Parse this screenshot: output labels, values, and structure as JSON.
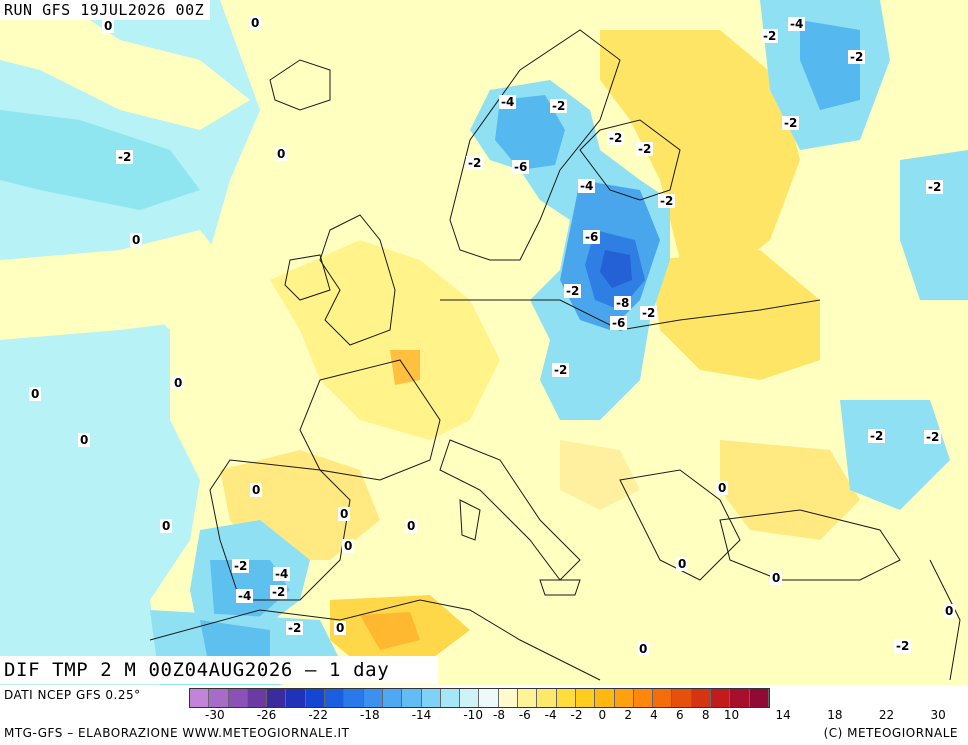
{
  "header": {
    "run_label": "RUN GFS 19JUL2026 00Z"
  },
  "map_title": "DIF TMP 2 M 00Z04AUG2026 – 1 day",
  "footer": {
    "source": "DATI NCEP GFS 0.25°",
    "credit": "MTG-GFS – ELABORAZIONE WWW.METEOGIORNALE.IT",
    "copyright": "(C) METEOGIORNALE"
  },
  "legend": {
    "colors": [
      "#c184d8",
      "#a86bc9",
      "#8b51b6",
      "#6c3aa3",
      "#3b2c9e",
      "#1f32b8",
      "#1446d3",
      "#1a5fe0",
      "#2a79ea",
      "#3a91f0",
      "#4fa8f2",
      "#63bdf3",
      "#7fd2f5",
      "#a5e6f7",
      "#cdf3f8",
      "#ecfbfa",
      "#fffbcf",
      "#fff39a",
      "#ffe96b",
      "#ffdd3c",
      "#ffcd1e",
      "#ffb812",
      "#ffa10e",
      "#ff870b",
      "#f56d0a",
      "#e5500c",
      "#d43510",
      "#c01c1b",
      "#a80f2c",
      "#900a35"
    ],
    "ticks": [
      "-30",
      "-26",
      "-22",
      "-18",
      "-14",
      "-10",
      "-8",
      "-6",
      "-4",
      "-2",
      "0",
      "2",
      "4",
      "6",
      "8",
      "10",
      "14",
      "18",
      "22",
      "30"
    ]
  },
  "contour_labels": [
    "0",
    "0",
    "-2",
    "0",
    "0",
    "0",
    "0",
    "0",
    "0",
    "0",
    "0",
    "0",
    "-2",
    "-4",
    "-2",
    "-2",
    "-4",
    "-2",
    "0",
    "-2",
    "0",
    "-4",
    "-2",
    "-2",
    "-2",
    "-6",
    "-4",
    "-2",
    "-6",
    "-2",
    "-8",
    "-2",
    "-4",
    "-6",
    "-2",
    "-2",
    "-2",
    "-2",
    "-2",
    "-2",
    "0",
    "0",
    "0",
    "0",
    "-2",
    "0"
  ],
  "map_colors": {
    "sea_light_cyan": "#aaf0f5",
    "sea_cyan": "#7fe0ee",
    "pale_yellow": "#ffffc0",
    "yellow": "#fff38a",
    "deep_yellow": "#ffe04a",
    "orange": "#ffc040",
    "blue_mid": "#4fb0ee",
    "blue_deep": "#2a70e0",
    "coastline": "#1a1a1a"
  }
}
